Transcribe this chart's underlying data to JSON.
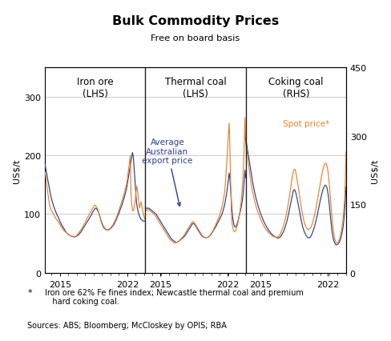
{
  "title": "Bulk Commodity Prices",
  "subtitle": "Free on board basis",
  "panel_labels": [
    "Iron ore\n(LHS)",
    "Thermal coal\n(LHS)",
    "Coking coal\n(RHS)"
  ],
  "ylabel_left": "US$/t",
  "ylabel_right": "US$/t",
  "ylim_lhs": [
    0,
    350
  ],
  "yticks_lhs": [
    0,
    100,
    200,
    300
  ],
  "yticks_rhs": [
    0,
    150,
    300,
    450
  ],
  "color_blue": "#2c3e8c",
  "color_orange": "#e8832a",
  "annotation_blue": "Average\nAustralian\nexport price",
  "annotation_orange": "Spot price*",
  "footnote_star": "   Iron ore 62% Fe fines index; Newcastle thermal coal and premium\n   hard coking coal.",
  "footnote_source": "Sources: ABS; Bloomberg; McCloskey by OPIS; RBA",
  "background_color": "#ffffff",
  "grid_color": "#cccccc",
  "divider_color": "#222222",
  "rhs_max": 450,
  "iron_ore_blue": [
    185,
    178,
    172,
    165,
    158,
    152,
    145,
    138,
    132,
    127,
    122,
    118,
    114,
    110,
    107,
    104,
    101,
    98,
    96,
    93,
    90,
    87,
    85,
    82,
    80,
    78,
    76,
    74,
    72,
    70,
    68,
    67,
    66,
    65,
    64,
    63,
    63,
    62,
    62,
    62,
    61,
    61,
    61,
    62,
    62,
    63,
    64,
    65,
    66,
    68,
    69,
    71,
    73,
    75,
    77,
    79,
    81,
    83,
    85,
    87,
    89,
    91,
    93,
    95,
    97,
    99,
    102,
    104,
    106,
    108,
    110,
    110,
    109,
    107,
    105,
    102,
    98,
    94,
    90,
    86,
    83,
    80,
    78,
    76,
    75,
    74,
    73,
    73,
    73,
    73,
    74,
    75,
    76,
    77,
    79,
    80,
    82,
    84,
    87,
    89,
    92,
    95,
    98,
    101,
    104,
    108,
    111,
    114,
    118,
    122,
    126,
    130,
    135,
    140,
    145,
    152,
    160,
    168,
    175,
    182,
    190,
    198,
    205,
    200,
    185,
    168,
    148,
    130,
    117,
    110,
    104,
    100,
    96,
    93,
    91,
    90,
    89,
    88,
    88,
    88,
    88
  ],
  "iron_ore_orange": [
    172,
    165,
    155,
    145,
    136,
    127,
    119,
    113,
    109,
    106,
    104,
    102,
    100,
    97,
    95,
    93,
    91,
    89,
    88,
    86,
    84,
    82,
    80,
    78,
    76,
    74,
    72,
    71,
    70,
    69,
    68,
    67,
    66,
    65,
    64,
    63,
    63,
    62,
    62,
    62,
    61,
    61,
    61,
    62,
    63,
    65,
    67,
    68,
    70,
    71,
    73,
    75,
    77,
    79,
    81,
    84,
    86,
    88,
    91,
    93,
    95,
    97,
    100,
    102,
    104,
    106,
    109,
    111,
    113,
    115,
    115,
    114,
    112,
    110,
    107,
    103,
    98,
    93,
    88,
    84,
    81,
    78,
    76,
    75,
    74,
    73,
    73,
    73,
    73,
    74,
    75,
    76,
    77,
    79,
    80,
    82,
    85,
    87,
    90,
    92,
    95,
    99,
    102,
    106,
    110,
    113,
    117,
    121,
    125,
    129,
    133,
    137,
    142,
    147,
    152,
    160,
    170,
    180,
    190,
    200,
    135,
    118,
    108,
    105,
    108,
    115,
    125,
    138,
    148,
    140,
    130,
    118,
    110,
    116,
    121,
    115,
    108,
    102,
    97,
    93,
    90
  ],
  "thermal_blue": [
    110,
    110,
    110,
    110,
    110,
    110,
    109,
    108,
    107,
    106,
    105,
    104,
    103,
    102,
    101,
    100,
    98,
    96,
    94,
    92,
    90,
    88,
    86,
    84,
    82,
    80,
    78,
    76,
    74,
    72,
    70,
    68,
    66,
    64,
    62,
    60,
    58,
    57,
    56,
    55,
    54,
    53,
    52,
    52,
    52,
    52,
    53,
    54,
    55,
    56,
    57,
    58,
    59,
    60,
    61,
    63,
    64,
    66,
    68,
    70,
    72,
    74,
    76,
    78,
    80,
    82,
    84,
    84,
    83,
    82,
    80,
    78,
    76,
    74,
    72,
    70,
    68,
    66,
    64,
    63,
    62,
    61,
    60,
    60,
    60,
    60,
    60,
    60,
    61,
    62,
    63,
    64,
    66,
    68,
    70,
    72,
    74,
    76,
    78,
    80,
    83,
    85,
    87,
    90,
    92,
    95,
    97,
    100,
    104,
    108,
    113,
    118,
    125,
    132,
    140,
    150,
    160,
    170,
    160,
    142,
    122,
    105,
    93,
    86,
    80,
    78,
    78,
    80,
    83,
    87,
    92,
    97,
    102,
    107,
    113,
    120,
    130,
    142,
    158,
    175,
    162
  ],
  "thermal_orange": [
    105,
    106,
    107,
    108,
    108,
    107,
    106,
    105,
    104,
    103,
    102,
    101,
    100,
    99,
    97,
    95,
    93,
    91,
    89,
    87,
    85,
    83,
    81,
    79,
    77,
    75,
    73,
    71,
    69,
    67,
    65,
    63,
    61,
    59,
    57,
    56,
    55,
    54,
    53,
    52,
    51,
    51,
    51,
    51,
    52,
    52,
    53,
    54,
    55,
    57,
    58,
    59,
    61,
    62,
    64,
    66,
    68,
    70,
    72,
    74,
    76,
    78,
    80,
    82,
    84,
    86,
    87,
    87,
    86,
    84,
    82,
    80,
    78,
    76,
    74,
    72,
    70,
    68,
    66,
    64,
    63,
    62,
    61,
    60,
    60,
    60,
    60,
    60,
    61,
    62,
    63,
    65,
    67,
    69,
    71,
    73,
    76,
    79,
    81,
    84,
    87,
    90,
    93,
    96,
    100,
    104,
    108,
    113,
    118,
    125,
    132,
    142,
    157,
    175,
    195,
    215,
    240,
    255,
    210,
    155,
    105,
    85,
    77,
    72,
    70,
    70,
    72,
    75,
    79,
    84,
    90,
    97,
    105,
    115,
    125,
    140,
    158,
    185,
    220,
    265,
    220
  ],
  "coking_blue_rhs": [
    295,
    285,
    275,
    265,
    255,
    245,
    235,
    225,
    215,
    205,
    196,
    188,
    180,
    173,
    166,
    160,
    154,
    148,
    143,
    138,
    133,
    129,
    125,
    121,
    117,
    113,
    110,
    107,
    104,
    101,
    98,
    96,
    93,
    91,
    89,
    87,
    85,
    84,
    82,
    81,
    80,
    79,
    78,
    77,
    76,
    76,
    76,
    77,
    78,
    80,
    82,
    85,
    88,
    91,
    95,
    100,
    105,
    110,
    116,
    123,
    130,
    138,
    147,
    155,
    163,
    170,
    177,
    181,
    182,
    180,
    175,
    168,
    161,
    153,
    145,
    136,
    127,
    119,
    111,
    104,
    98,
    93,
    89,
    86,
    82,
    80,
    78,
    77,
    76,
    77,
    78,
    80,
    83,
    87,
    91,
    96,
    101,
    107,
    113,
    120,
    127,
    135,
    143,
    151,
    158,
    165,
    172,
    178,
    183,
    187,
    190,
    192,
    191,
    188,
    182,
    172,
    159,
    143,
    126,
    110,
    96,
    85,
    76,
    70,
    66,
    63,
    61,
    61,
    62,
    63,
    65,
    68,
    72,
    78,
    84,
    92,
    101,
    115,
    134,
    158,
    188
  ],
  "coking_orange_rhs": [
    285,
    275,
    263,
    250,
    238,
    225,
    213,
    202,
    192,
    183,
    175,
    168,
    161,
    154,
    148,
    143,
    138,
    133,
    129,
    125,
    121,
    117,
    113,
    110,
    107,
    104,
    101,
    98,
    96,
    94,
    92,
    90,
    88,
    86,
    85,
    84,
    82,
    81,
    80,
    79,
    79,
    78,
    78,
    78,
    78,
    79,
    80,
    82,
    84,
    87,
    91,
    95,
    99,
    104,
    110,
    116,
    123,
    130,
    138,
    147,
    157,
    167,
    178,
    189,
    200,
    210,
    218,
    224,
    227,
    226,
    220,
    211,
    202,
    192,
    182,
    171,
    160,
    149,
    139,
    130,
    122,
    115,
    109,
    105,
    101,
    98,
    96,
    95,
    95,
    96,
    97,
    100,
    103,
    108,
    113,
    119,
    126,
    133,
    141,
    150,
    159,
    168,
    177,
    186,
    195,
    204,
    213,
    221,
    228,
    233,
    238,
    240,
    240,
    237,
    230,
    220,
    205,
    188,
    168,
    148,
    128,
    110,
    96,
    85,
    76,
    70,
    66,
    65,
    66,
    67,
    70,
    74,
    80,
    88,
    97,
    108,
    122,
    140,
    163,
    205,
    265
  ]
}
